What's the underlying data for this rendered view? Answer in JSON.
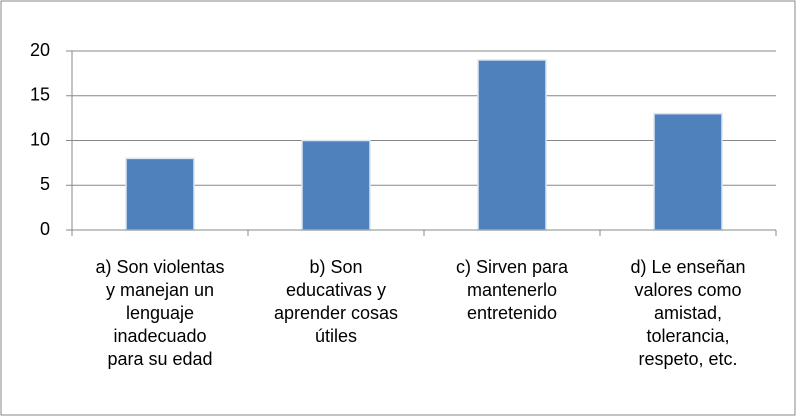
{
  "chart_data": {
    "type": "bar",
    "categories": [
      "a) Son violentas\ny manejan un\nlenguaje\ninadecuado\npara su edad",
      "b) Son\neducativas y\naprender cosas\nútiles",
      "c) Sirven para\nmantenerlo\nentretenido",
      "d) Le enseñan\nvalores como\namistad,\ntolerancia,\nrespeto, etc."
    ],
    "values": [
      8,
      10,
      19,
      13
    ],
    "color": "#4f81bd",
    "ylim": [
      0,
      20
    ],
    "yticks": [
      0,
      5,
      10,
      15,
      20
    ],
    "grid": true
  }
}
